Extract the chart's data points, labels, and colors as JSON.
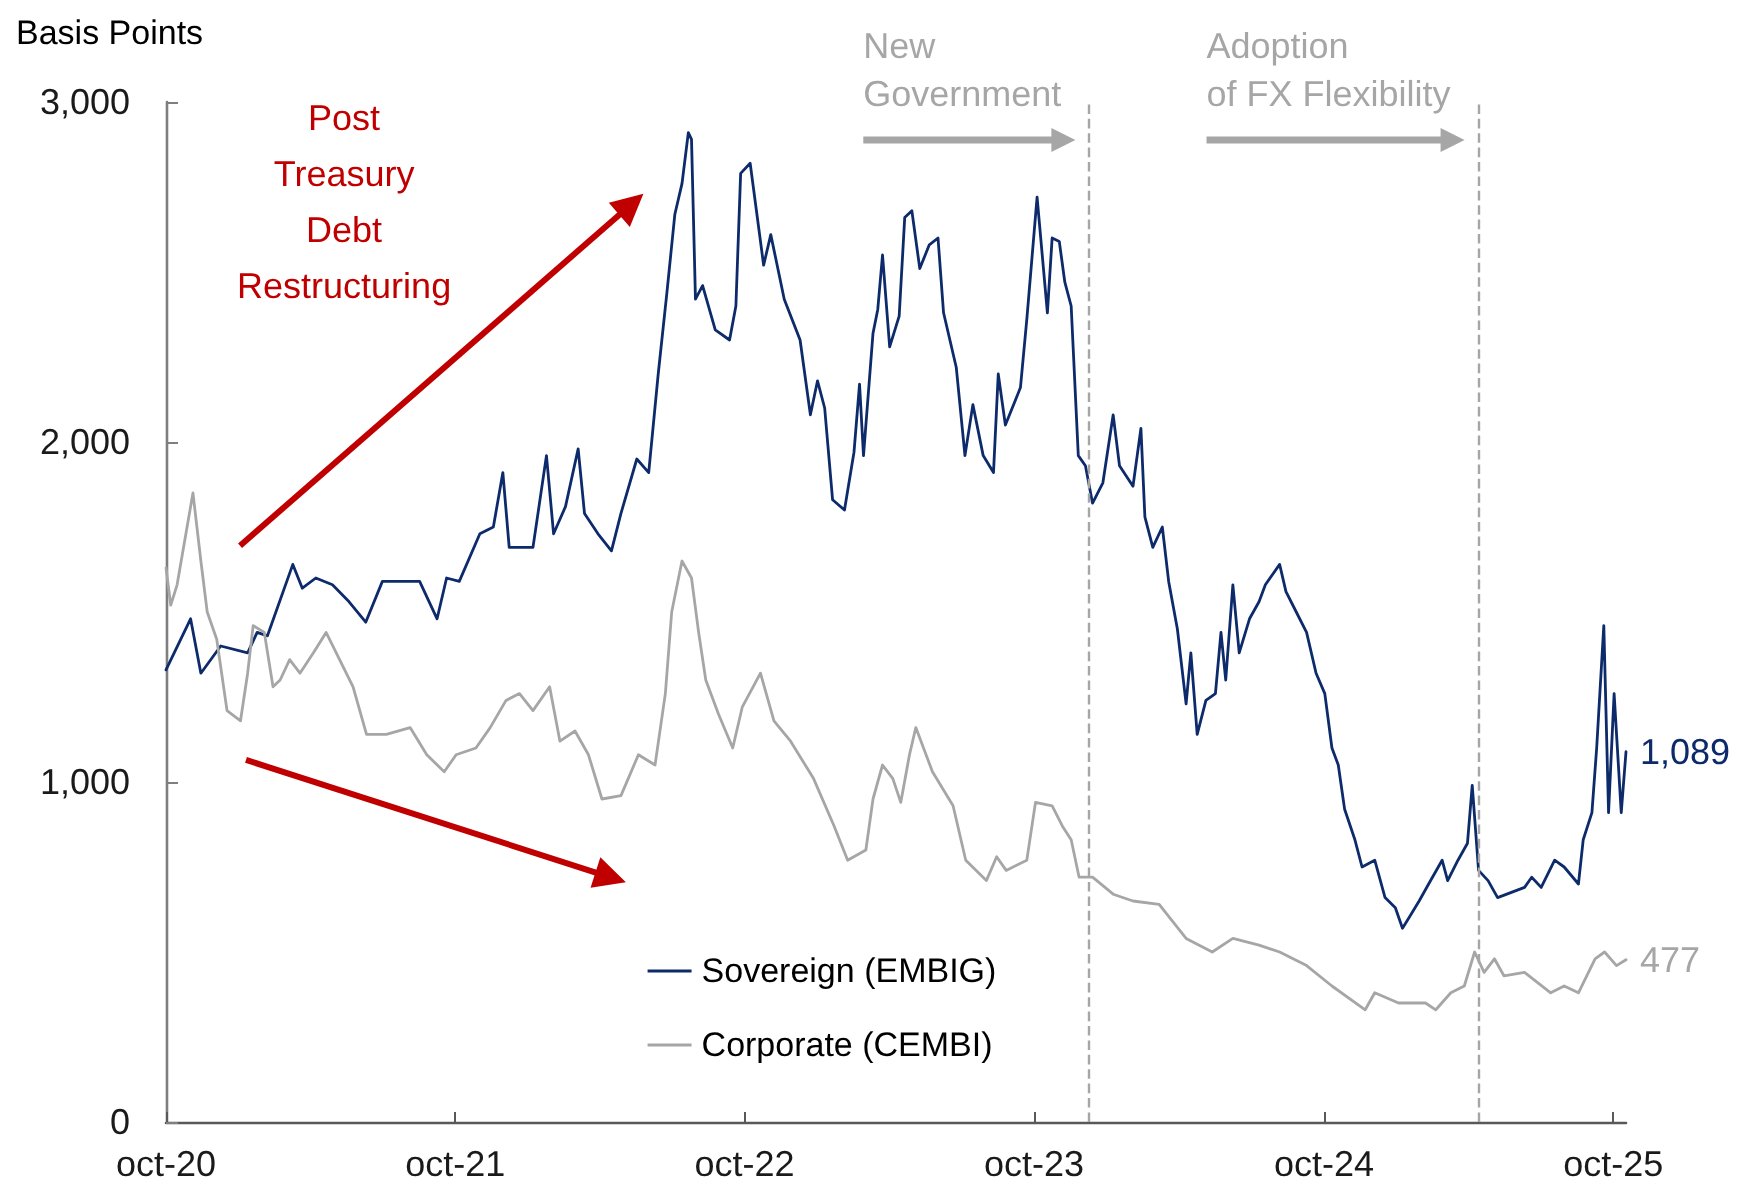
{
  "chart_data": {
    "type": "line",
    "ylabel": "Basis Points",
    "legend": "bottom",
    "xlim": [
      "2020-10-01",
      "2025-10-17"
    ],
    "xticks": [
      {
        "value": "2020-10-01",
        "label": "oct-20"
      },
      {
        "value": "2021-10-01",
        "label": "oct-21"
      },
      {
        "value": "2022-10-01",
        "label": "oct-22"
      },
      {
        "value": "2023-10-01",
        "label": "oct-23"
      },
      {
        "value": "2024-10-01",
        "label": "oct-24"
      },
      {
        "value": "2025-10-01",
        "label": "oct-25"
      }
    ],
    "ylim": [
      0,
      3000
    ],
    "yticks": [
      0,
      {
        "value": 1000,
        "label": "1,000"
      },
      {
        "value": 2000,
        "label": "2,000"
      },
      {
        "value": 3000,
        "label": "3,000"
      }
    ],
    "ref_lines": [
      {
        "axis": "x",
        "value": "2023-12-10",
        "label": "New Government",
        "color": "#a6a6a6",
        "line_style": "dashed"
      },
      {
        "axis": "x",
        "value": "2025-04-14",
        "label": "Adoption of FX Flexibility",
        "color": "#a6a6a6",
        "line_style": "dashed"
      }
    ],
    "annotations": [
      "Post Treasury Debt Restructuring"
    ],
    "series": [
      {
        "name": "Sovereign (EMBIG)",
        "color": "#0d2b6b",
        "x": [
          "2020-10-01",
          "2020-11-01",
          "2020-11-14",
          "2020-12-09",
          "2021-01-12",
          "2021-01-24",
          "2021-02-06",
          "2021-03-10",
          "2021-03-22",
          "2021-04-08",
          "2021-04-29",
          "2021-05-20",
          "2021-06-10",
          "2021-07-01",
          "2021-08-17",
          "2021-09-08",
          "2021-09-20",
          "2021-10-06",
          "2021-11-01",
          "2021-11-18",
          "2021-11-30",
          "2021-12-08",
          "2022-01-07",
          "2022-01-24",
          "2022-02-02",
          "2022-02-17",
          "2022-03-05",
          "2022-03-13",
          "2022-03-30",
          "2022-04-16",
          "2022-04-28",
          "2022-05-18",
          "2022-06-02",
          "2022-06-14",
          "2022-06-25",
          "2022-07-05",
          "2022-07-14",
          "2022-07-22",
          "2022-07-26",
          "2022-07-31",
          "2022-08-09",
          "2022-08-25",
          "2022-09-12",
          "2022-09-20",
          "2022-09-26",
          "2022-10-08",
          "2022-10-25",
          "2022-11-03",
          "2022-11-20",
          "2022-12-10",
          "2022-12-23",
          "2023-01-01",
          "2023-01-10",
          "2023-01-20",
          "2023-02-04",
          "2023-02-16",
          "2023-02-23",
          "2023-02-28",
          "2023-03-12",
          "2023-03-18",
          "2023-03-24",
          "2023-04-02",
          "2023-04-14",
          "2023-04-21",
          "2023-04-30",
          "2023-05-10",
          "2023-05-22",
          "2023-06-02",
          "2023-06-09",
          "2023-06-25",
          "2023-07-06",
          "2023-07-16",
          "2023-07-29",
          "2023-08-11",
          "2023-08-17",
          "2023-08-26",
          "2023-09-14",
          "2023-09-22",
          "2023-10-05",
          "2023-10-18",
          "2023-10-24",
          "2023-11-02",
          "2023-11-09",
          "2023-11-17",
          "2023-11-26",
          "2023-12-05",
          "2023-12-14",
          "2023-12-27",
          "2024-01-09",
          "2024-01-17",
          "2024-02-03",
          "2024-02-13",
          "2024-02-18",
          "2024-02-28",
          "2024-03-11",
          "2024-03-19",
          "2024-03-30",
          "2024-04-10",
          "2024-04-16",
          "2024-04-24",
          "2024-05-05",
          "2024-05-17",
          "2024-05-24",
          "2024-05-30",
          "2024-06-08",
          "2024-06-16",
          "2024-06-29",
          "2024-07-11",
          "2024-07-19",
          "2024-08-06",
          "2024-08-14",
          "2024-08-27",
          "2024-09-09",
          "2024-09-21",
          "2024-10-02",
          "2024-10-11",
          "2024-10-19",
          "2024-10-27",
          "2024-11-09",
          "2024-11-18",
          "2024-12-04",
          "2024-12-17",
          "2024-12-30",
          "2025-01-08",
          "2025-01-16",
          "2025-01-29",
          "2025-02-10",
          "2025-02-27",
          "2025-03-06",
          "2025-03-19",
          "2025-03-31",
          "2025-04-06",
          "2025-04-14",
          "2025-04-26",
          "2025-05-08",
          "2025-06-11",
          "2025-06-20",
          "2025-07-02",
          "2025-07-19",
          "2025-07-31",
          "2025-08-18",
          "2025-08-24",
          "2025-09-04",
          "2025-09-10",
          "2025-09-19",
          "2025-09-25",
          "2025-10-02",
          "2025-10-11",
          "2025-10-17"
        ],
        "values": [
          1330,
          1480,
          1320,
          1400,
          1380,
          1440,
          1430,
          1640,
          1570,
          1600,
          1580,
          1530,
          1470,
          1590,
          1590,
          1480,
          1600,
          1590,
          1730,
          1750,
          1910,
          1690,
          1690,
          1960,
          1730,
          1810,
          1980,
          1790,
          1730,
          1680,
          1790,
          1950,
          1910,
          2200,
          2440,
          2670,
          2760,
          2910,
          2890,
          2420,
          2460,
          2330,
          2300,
          2400,
          2790,
          2820,
          2520,
          2610,
          2420,
          2300,
          2080,
          2180,
          2100,
          1830,
          1800,
          1970,
          2170,
          1960,
          2320,
          2390,
          2550,
          2280,
          2370,
          2660,
          2680,
          2510,
          2580,
          2600,
          2380,
          2220,
          1960,
          2110,
          1960,
          1910,
          2200,
          2050,
          2160,
          2360,
          2720,
          2380,
          2600,
          2590,
          2470,
          2400,
          1960,
          1930,
          1820,
          1880,
          2080,
          1930,
          1870,
          2040,
          1780,
          1690,
          1750,
          1590,
          1450,
          1230,
          1380,
          1140,
          1240,
          1260,
          1440,
          1300,
          1580,
          1380,
          1480,
          1530,
          1580,
          1640,
          1560,
          1500,
          1440,
          1320,
          1260,
          1100,
          1050,
          920,
          830,
          750,
          770,
          660,
          630,
          570,
          600,
          650,
          700,
          770,
          710,
          770,
          820,
          990,
          740,
          710,
          660,
          690,
          720,
          690,
          770,
          750,
          700,
          830,
          910,
          1100,
          1460,
          910,
          1260,
          910,
          1089
        ],
        "value_labels": [
          null,
          null,
          null,
          null,
          null,
          null,
          null,
          null,
          null,
          null,
          null,
          null,
          null,
          null,
          null,
          null,
          null,
          null,
          null,
          null,
          null,
          null,
          null,
          null,
          null,
          null,
          null,
          null,
          null,
          null,
          null,
          null,
          null,
          null,
          null,
          null,
          null,
          null,
          null,
          null,
          null,
          null,
          null,
          null,
          null,
          null,
          null,
          null,
          null,
          null,
          null,
          null,
          null,
          null,
          null,
          null,
          null,
          null,
          null,
          null,
          null,
          null,
          null,
          null,
          null,
          null,
          null,
          null,
          null,
          null,
          null,
          null,
          null,
          null,
          null,
          null,
          null,
          null,
          null,
          null,
          null,
          null,
          null,
          null,
          null,
          null,
          null,
          null,
          null,
          null,
          null,
          null,
          null,
          null,
          null,
          null,
          null,
          null,
          null,
          null,
          null,
          null,
          null,
          null,
          null,
          null,
          null,
          null,
          null,
          null,
          null,
          null,
          null,
          null,
          null,
          null,
          null,
          null,
          null,
          null,
          null,
          null,
          null,
          null,
          null,
          null,
          null,
          null,
          null,
          null,
          null,
          null,
          null,
          null,
          null,
          null,
          null,
          null,
          null,
          null,
          null,
          null,
          null,
          null,
          null,
          null,
          null,
          null,
          "1,089"
        ]
      },
      {
        "name": "Corporate (CEMBI)",
        "color": "#a6a6a6",
        "x": [
          "2020-10-01",
          "2020-10-07",
          "2020-10-15",
          "2020-11-04",
          "2020-11-14",
          "2020-11-22",
          "2020-12-04",
          "2020-12-17",
          "2021-01-03",
          "2021-01-12",
          "2021-01-19",
          "2021-02-02",
          "2021-02-13",
          "2021-02-22",
          "2021-03-06",
          "2021-03-19",
          "2021-04-05",
          "2021-04-21",
          "2021-05-08",
          "2021-05-25",
          "2021-06-11",
          "2021-07-06",
          "2021-08-05",
          "2021-08-26",
          "2021-09-17",
          "2021-10-02",
          "2021-10-27",
          "2021-11-14",
          "2021-12-04",
          "2021-12-21",
          "2022-01-07",
          "2022-01-28",
          "2022-02-10",
          "2022-03-01",
          "2022-03-18",
          "2022-04-04",
          "2022-04-28",
          "2022-05-20",
          "2022-06-10",
          "2022-06-23",
          "2022-07-01",
          "2022-07-14",
          "2022-07-26",
          "2022-08-04",
          "2022-08-13",
          "2022-08-29",
          "2022-09-16",
          "2022-09-28",
          "2022-10-21",
          "2022-11-07",
          "2022-11-28",
          "2022-12-27",
          "2023-01-22",
          "2023-02-08",
          "2023-03-03",
          "2023-03-12",
          "2023-03-24",
          "2023-04-06",
          "2023-04-16",
          "2023-04-27",
          "2023-05-05",
          "2023-05-26",
          "2023-06-21",
          "2023-07-07",
          "2023-08-02",
          "2023-08-15",
          "2023-08-27",
          "2023-09-22",
          "2023-10-03",
          "2023-10-24",
          "2023-11-06",
          "2023-11-17",
          "2023-11-27",
          "2023-12-14",
          "2024-01-09",
          "2024-02-03",
          "2024-03-07",
          "2024-04-10",
          "2024-05-13",
          "2024-06-08",
          "2024-07-11",
          "2024-08-06",
          "2024-09-09",
          "2024-10-11",
          "2024-11-22",
          "2024-12-04",
          "2025-01-03",
          "2025-02-06",
          "2025-02-19",
          "2025-03-10",
          "2025-03-27",
          "2025-04-09",
          "2025-04-21",
          "2025-05-04",
          "2025-05-16",
          "2025-06-11",
          "2025-07-14",
          "2025-07-31",
          "2025-08-18",
          "2025-09-08",
          "2025-09-20",
          "2025-10-05",
          "2025-10-17"
        ],
        "values": [
          1630,
          1520,
          1580,
          1850,
          1650,
          1500,
          1420,
          1210,
          1180,
          1320,
          1460,
          1440,
          1280,
          1300,
          1360,
          1320,
          1380,
          1440,
          1360,
          1280,
          1140,
          1140,
          1160,
          1080,
          1030,
          1080,
          1100,
          1160,
          1240,
          1260,
          1210,
          1280,
          1120,
          1150,
          1080,
          950,
          960,
          1080,
          1050,
          1260,
          1500,
          1650,
          1600,
          1440,
          1300,
          1200,
          1100,
          1220,
          1320,
          1180,
          1120,
          1010,
          870,
          770,
          800,
          950,
          1050,
          1010,
          940,
          1080,
          1160,
          1030,
          930,
          770,
          710,
          780,
          740,
          770,
          940,
          930,
          870,
          830,
          720,
          720,
          670,
          650,
          640,
          540,
          500,
          540,
          520,
          500,
          460,
          400,
          330,
          380,
          350,
          350,
          330,
          380,
          400,
          500,
          440,
          480,
          430,
          440,
          380,
          400,
          380,
          480,
          500,
          460,
          477
        ],
        "value_labels": [
          null,
          null,
          null,
          null,
          null,
          null,
          null,
          null,
          null,
          null,
          null,
          null,
          null,
          null,
          null,
          null,
          null,
          null,
          null,
          null,
          null,
          null,
          null,
          null,
          null,
          null,
          null,
          null,
          null,
          null,
          null,
          null,
          null,
          null,
          null,
          null,
          null,
          null,
          null,
          null,
          null,
          null,
          null,
          null,
          null,
          null,
          null,
          null,
          null,
          null,
          null,
          null,
          null,
          null,
          null,
          null,
          null,
          null,
          null,
          null,
          null,
          null,
          null,
          null,
          null,
          null,
          null,
          null,
          null,
          null,
          null,
          null,
          null,
          null,
          null,
          null,
          null,
          null,
          null,
          null,
          null,
          null,
          null,
          null,
          null,
          null,
          null,
          null,
          null,
          null,
          null,
          null,
          null,
          null,
          null,
          null,
          null,
          null,
          null,
          null,
          null,
          null,
          "477"
        ]
      }
    ]
  }
}
